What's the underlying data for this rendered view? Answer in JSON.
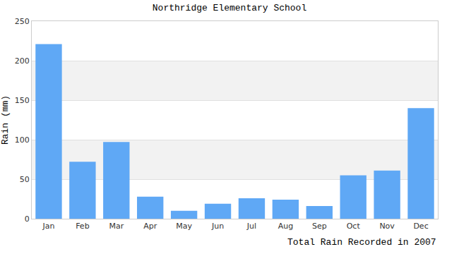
{
  "chart_data": {
    "type": "bar",
    "title": "Northridge Elementary School",
    "ylabel": "Rain (mm)",
    "xlabel": "Total Rain Recorded in 2007",
    "categories": [
      "Jan",
      "Feb",
      "Mar",
      "Apr",
      "May",
      "Jun",
      "Jul",
      "Aug",
      "Sep",
      "Oct",
      "Nov",
      "Dec"
    ],
    "values": [
      221,
      72,
      97,
      28,
      10,
      19,
      26,
      24,
      16,
      55,
      61,
      140
    ],
    "color": "#5fa8f5",
    "ylim": [
      0,
      250
    ],
    "yticks": [
      0,
      50,
      100,
      150,
      200,
      250
    ],
    "grid": true
  }
}
